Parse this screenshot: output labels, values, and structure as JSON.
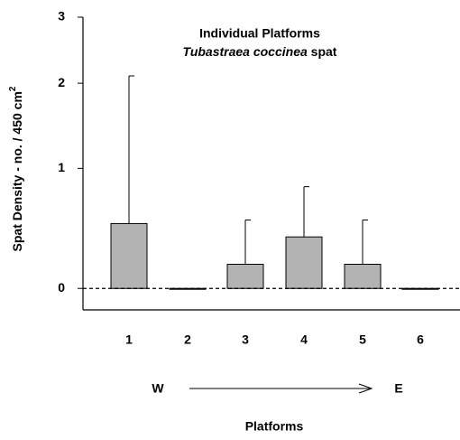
{
  "chart_data": {
    "type": "bar",
    "title": "Individual Platforms",
    "subtitle": [
      "Tubastraea coccinea",
      "spat"
    ],
    "x_label": "Platforms",
    "y_label": [
      "Spat Density - no. / 450 cm",
      "2"
    ],
    "annotations": [
      "W",
      "E"
    ],
    "categories": [
      "1",
      "2",
      "3",
      "4",
      "5",
      "6"
    ],
    "values": [
      0.49,
      0,
      0.17,
      0.38,
      0.17,
      0
    ],
    "errors": [
      1.61,
      null,
      0.35,
      0.44,
      0.35,
      null
    ],
    "color": "#b3b3b3",
    "yscale": "log",
    "ylim": [
      -0.14,
      3
    ],
    "yticks": [
      0,
      1,
      2,
      3
    ],
    "zero_line": true
  }
}
